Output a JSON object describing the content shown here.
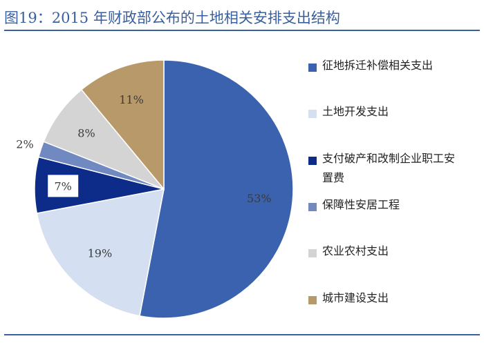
{
  "header": {
    "title": "图19：2015 年财政部公布的土地相关安排支出结构"
  },
  "chart_data": {
    "type": "pie",
    "title": "",
    "slices": [
      {
        "label": "征地拆迁补偿相关支出",
        "value": 53,
        "value_label": "53%",
        "color": "#3a62ae"
      },
      {
        "label": "土地开发支出",
        "value": 19,
        "value_label": "19%",
        "color": "#d4e0f2"
      },
      {
        "label": "支付破产和改制企业职工安置费",
        "value": 7,
        "value_label": "7%",
        "color": "#0d2c8a"
      },
      {
        "label": "保障性安居工程",
        "value": 2,
        "value_label": "2%",
        "color": "#7089c0"
      },
      {
        "label": "农业农村支出",
        "value": 8,
        "value_label": "8%",
        "color": "#d4d4d4"
      },
      {
        "label": "城市建设支出",
        "value": 11,
        "value_label": "11%",
        "color": "#b8996a"
      }
    ],
    "start_angle": "12 o'clock",
    "direction": "clockwise",
    "legend_position": "right"
  }
}
